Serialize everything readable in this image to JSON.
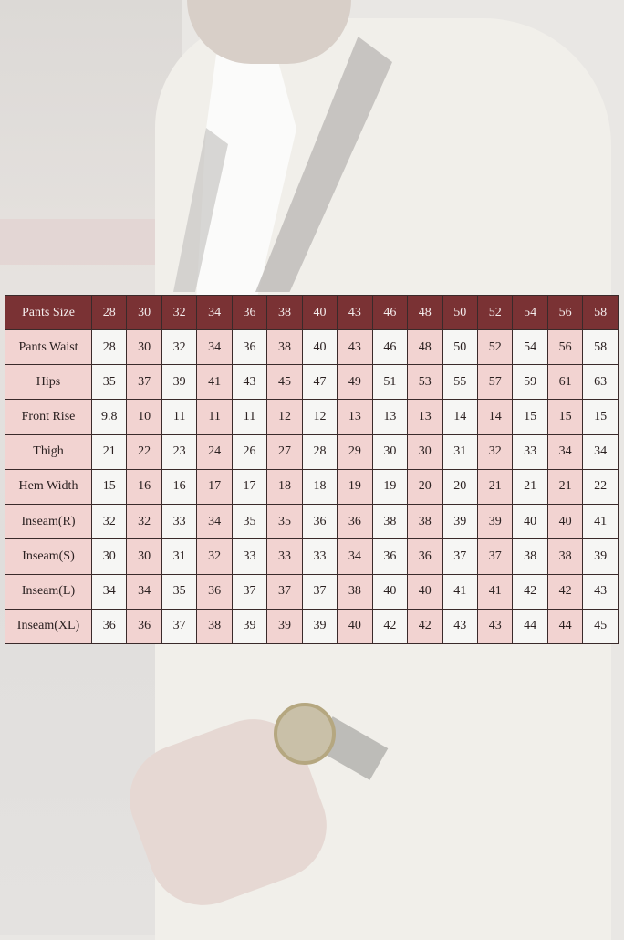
{
  "colors": {
    "header_bg": "#7a3234",
    "pink": "#f2d3d1",
    "white": "#f6f6f4"
  },
  "table": {
    "header_label": "Pants Size",
    "sizes": [
      "28",
      "30",
      "32",
      "34",
      "36",
      "38",
      "40",
      "43",
      "46",
      "48",
      "50",
      "52",
      "54",
      "56",
      "58"
    ],
    "rows": [
      {
        "label": "Pants Waist",
        "values": [
          "28",
          "30",
          "32",
          "34",
          "36",
          "38",
          "40",
          "43",
          "46",
          "48",
          "50",
          "52",
          "54",
          "56",
          "58"
        ]
      },
      {
        "label": "Hips",
        "values": [
          "35",
          "37",
          "39",
          "41",
          "43",
          "45",
          "47",
          "49",
          "51",
          "53",
          "55",
          "57",
          "59",
          "61",
          "63"
        ]
      },
      {
        "label": "Front Rise",
        "values": [
          "9.8",
          "10",
          "11",
          "11",
          "11",
          "12",
          "12",
          "13",
          "13",
          "13",
          "14",
          "14",
          "15",
          "15",
          "15"
        ]
      },
      {
        "label": "Thigh",
        "values": [
          "21",
          "22",
          "23",
          "24",
          "26",
          "27",
          "28",
          "29",
          "30",
          "30",
          "31",
          "32",
          "33",
          "34",
          "34"
        ]
      },
      {
        "label": "Hem Width",
        "values": [
          "15",
          "16",
          "16",
          "17",
          "17",
          "18",
          "18",
          "19",
          "19",
          "20",
          "20",
          "21",
          "21",
          "21",
          "22"
        ]
      },
      {
        "label": "Inseam(R)",
        "values": [
          "32",
          "32",
          "33",
          "34",
          "35",
          "35",
          "36",
          "36",
          "38",
          "38",
          "39",
          "39",
          "40",
          "40",
          "41"
        ]
      },
      {
        "label": "Inseam(S)",
        "values": [
          "30",
          "30",
          "31",
          "32",
          "33",
          "33",
          "33",
          "34",
          "36",
          "36",
          "37",
          "37",
          "38",
          "38",
          "39"
        ]
      },
      {
        "label": "Inseam(L)",
        "values": [
          "34",
          "34",
          "35",
          "36",
          "37",
          "37",
          "37",
          "38",
          "40",
          "40",
          "41",
          "41",
          "42",
          "42",
          "43"
        ]
      },
      {
        "label": "Inseam(XL)",
        "values": [
          "36",
          "36",
          "37",
          "38",
          "39",
          "39",
          "39",
          "40",
          "42",
          "42",
          "43",
          "43",
          "44",
          "44",
          "45"
        ]
      }
    ]
  }
}
